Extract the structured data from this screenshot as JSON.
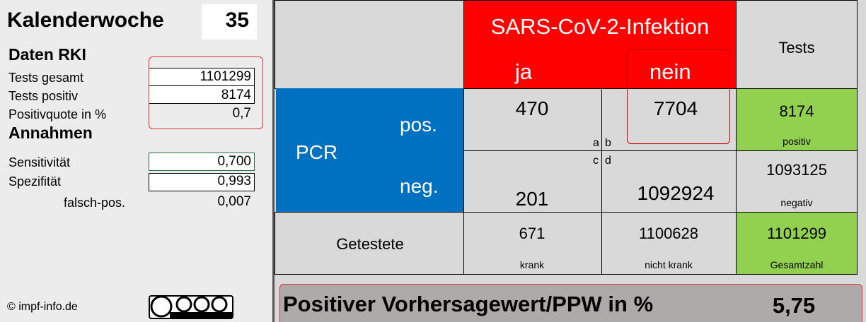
{
  "left": {
    "week_label": "Kalenderwoche",
    "week": "35",
    "rki_heading": "Daten RKI",
    "rki_rows": [
      {
        "label": "Tests gesamt",
        "value": "1101299"
      },
      {
        "label": "Tests positiv",
        "value": "8174"
      },
      {
        "label": "Positivquote in %",
        "value": "0,7"
      }
    ],
    "assumptions_heading": "Annahmen",
    "assumption_rows": [
      {
        "label": "Sensitivität",
        "value": "0,700"
      },
      {
        "label": "Spezifität",
        "value": "0,993"
      },
      {
        "label": "falsch-pos.",
        "value": "0,007"
      }
    ],
    "copyright": "© impf-info.de"
  },
  "table": {
    "header": "SARS-CoV-2-Infektion",
    "col_ja": "ja",
    "col_nein": "nein",
    "col_tests": "Tests",
    "row_group": "PCR",
    "row_pos": "pos.",
    "row_neg": "neg.",
    "row_tested": "Getestete",
    "corner_a": "a",
    "corner_b": "b",
    "corner_c": "c",
    "corner_d": "d",
    "pos_ja": "470",
    "pos_nein": "7704",
    "pos_total": "8174",
    "pos_total_label": "positiv",
    "neg_ja": "201",
    "neg_nein": "1092924",
    "neg_total": "1093125",
    "neg_total_label": "negativ",
    "tested_ja": "671",
    "tested_ja_label": "krank",
    "tested_nein": "1100628",
    "tested_nein_label": "nicht krank",
    "tested_total": "1101299",
    "tested_total_label": "Gesamtzahl"
  },
  "result": {
    "label": "Positiver Vorhersagewert/PPW in %",
    "value": "5,75"
  }
}
